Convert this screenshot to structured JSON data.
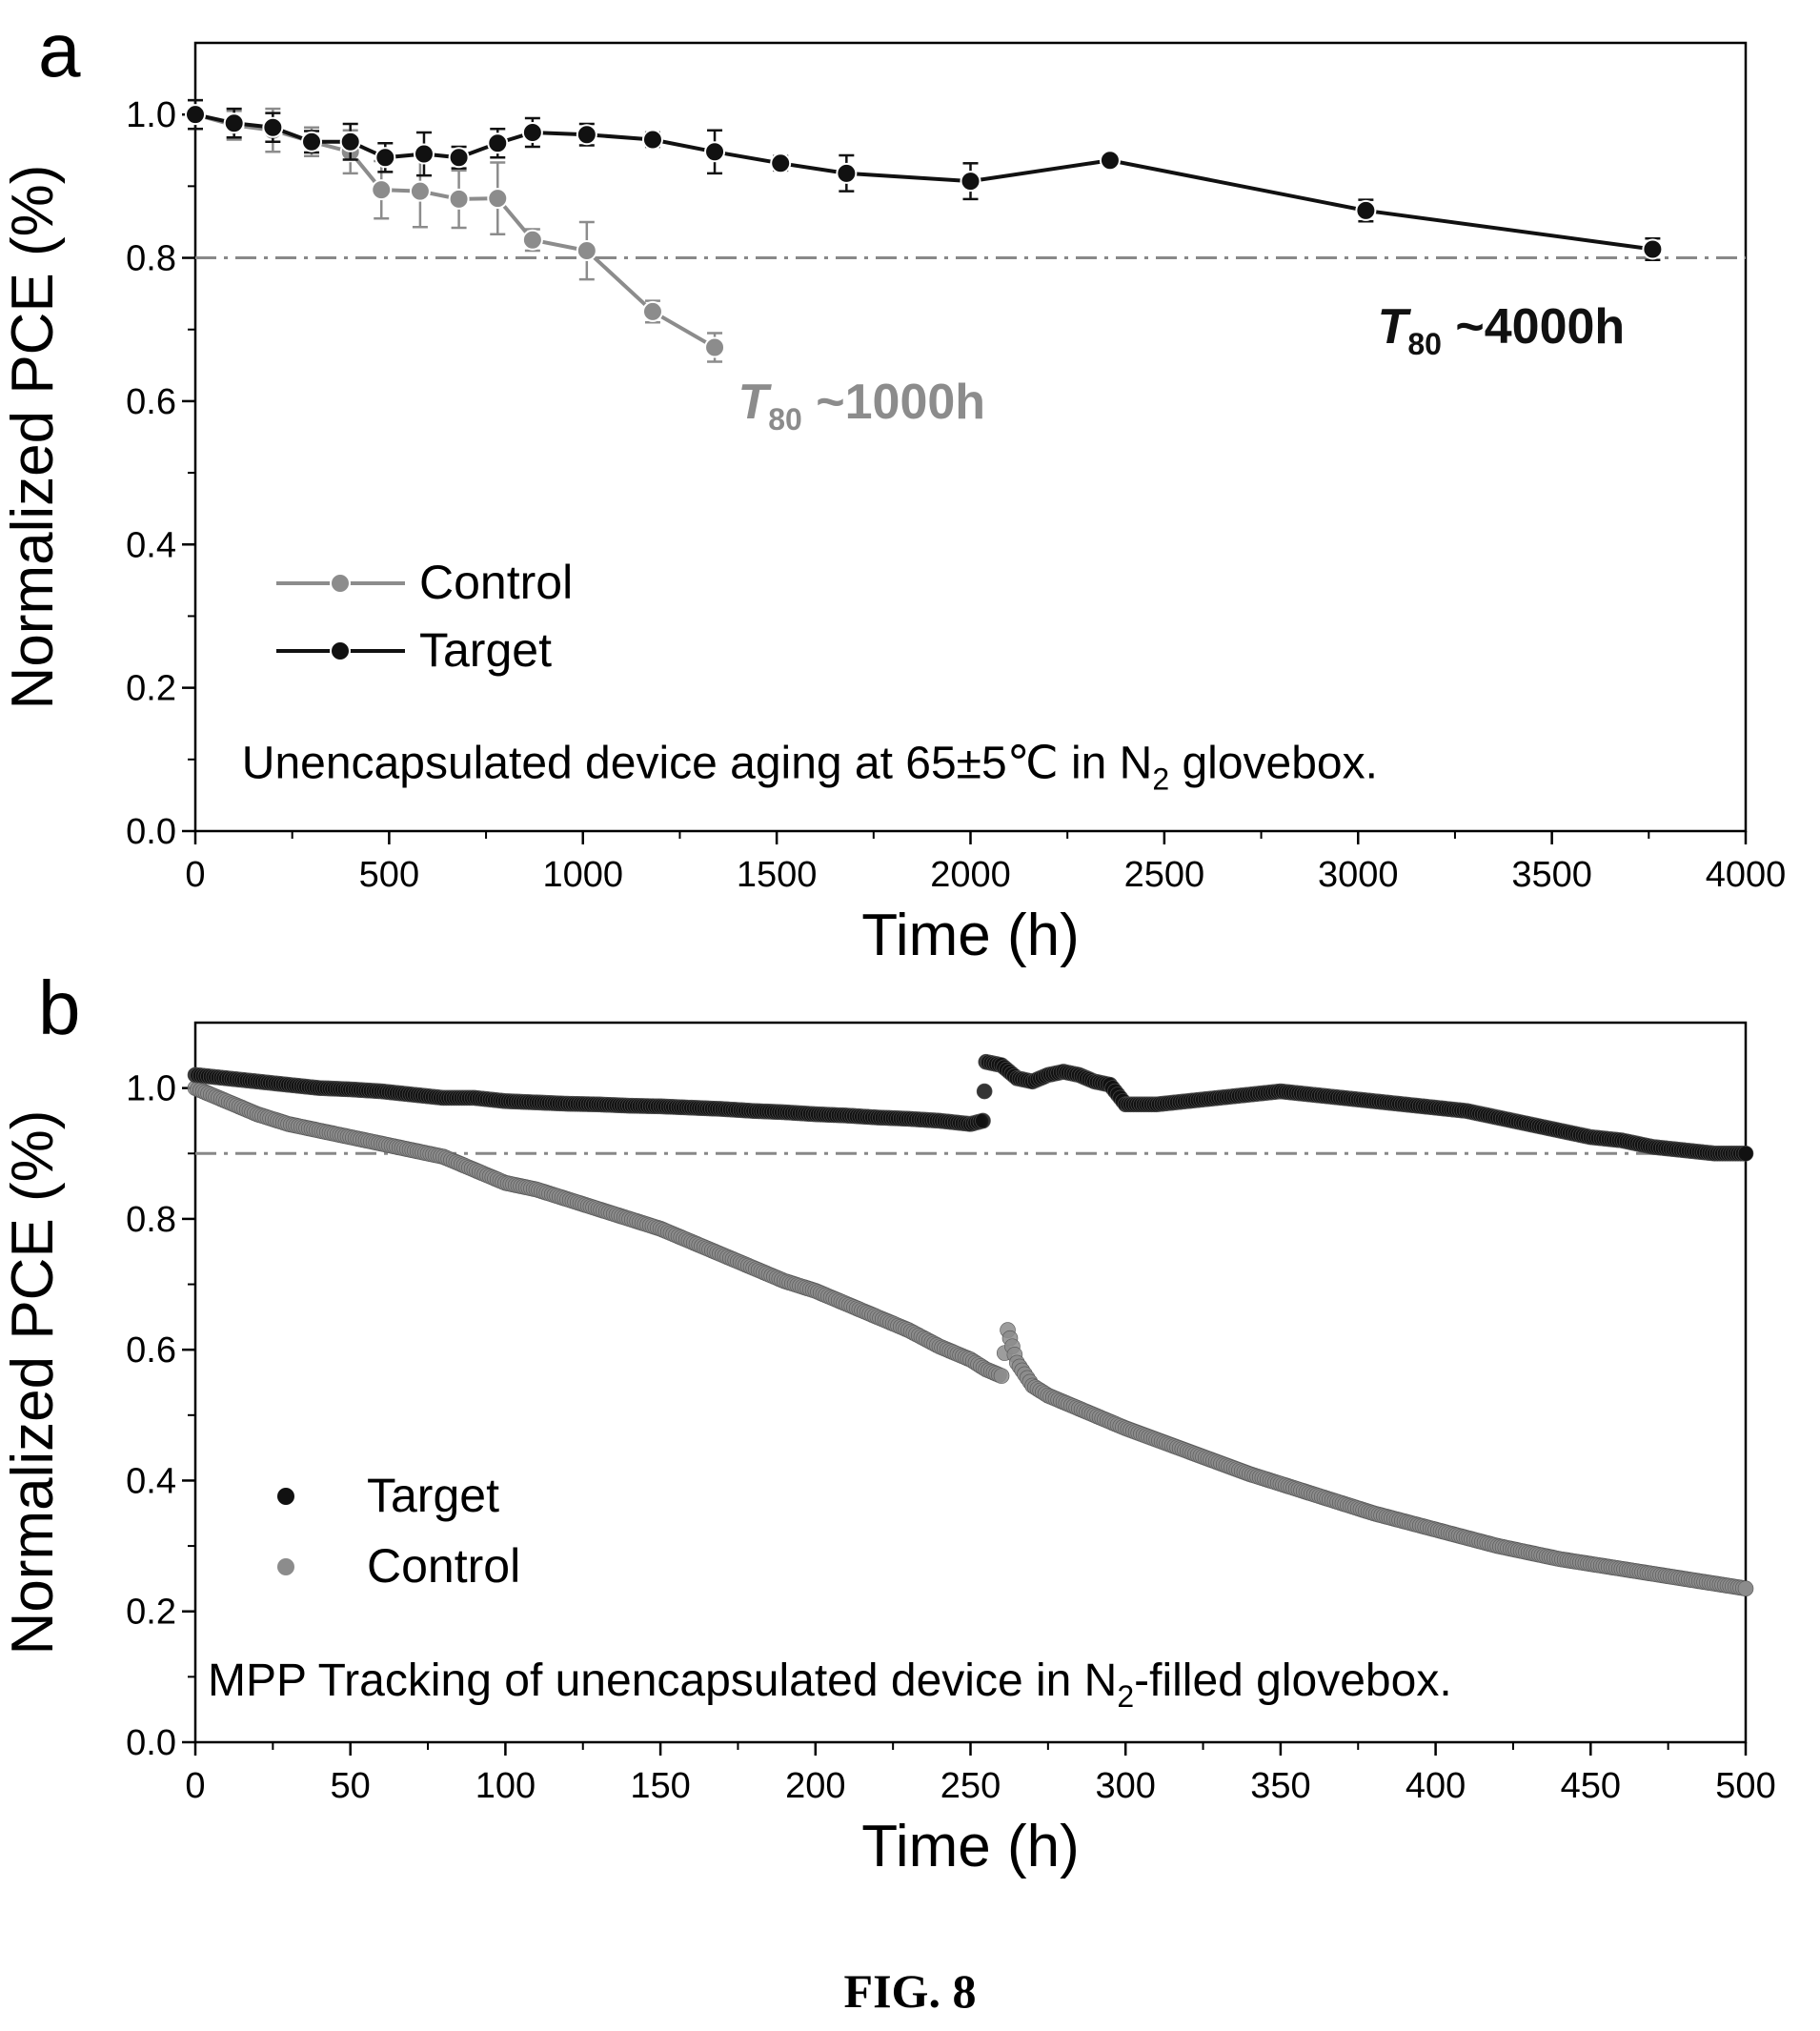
{
  "figure_caption": "FIG. 8",
  "colors": {
    "control": "#8c8c8c",
    "target": "#111111",
    "threshold": "#888888",
    "axis": "#000000"
  },
  "chart_data": [
    {
      "panel_label": "a",
      "type": "line",
      "xlabel": "Time (h)",
      "ylabel": "Normalized PCE (%)",
      "xlim": [
        0,
        4000
      ],
      "ylim": [
        0,
        1.1
      ],
      "xticks": [
        0,
        500,
        1000,
        1500,
        2000,
        2500,
        3000,
        3500,
        4000
      ],
      "yticks": [
        0.0,
        0.2,
        0.4,
        0.6,
        0.8,
        1.0
      ],
      "ytick_labels": [
        "0.0",
        "0.2",
        "0.4",
        "0.6",
        "0.8",
        "1.0"
      ],
      "grid": false,
      "legend": "left",
      "threshold": 0.8,
      "threshold_style": "dash-dot",
      "series": [
        {
          "name": "Control",
          "color_key": "control",
          "x": [
            0,
            100,
            200,
            300,
            400,
            480,
            580,
            680,
            780,
            870,
            1010,
            1180,
            1340
          ],
          "y": [
            1.0,
            0.985,
            0.978,
            0.962,
            0.948,
            0.895,
            0.893,
            0.882,
            0.883,
            0.825,
            0.81,
            0.725,
            0.675
          ],
          "err": [
            0.02,
            0.02,
            0.03,
            0.02,
            0.03,
            0.04,
            0.05,
            0.04,
            0.05,
            0.015,
            0.04,
            0.015,
            0.02
          ]
        },
        {
          "name": "Target",
          "color_key": "target",
          "x": [
            0,
            100,
            200,
            300,
            400,
            490,
            590,
            680,
            780,
            870,
            1010,
            1180,
            1340,
            1510,
            1680,
            2000,
            2360,
            3020,
            3760
          ],
          "y": [
            1.0,
            0.988,
            0.982,
            0.962,
            0.962,
            0.94,
            0.945,
            0.94,
            0.96,
            0.975,
            0.972,
            0.965,
            0.948,
            0.932,
            0.918,
            0.907,
            0.936,
            0.866,
            0.812
          ],
          "err": [
            0.02,
            0.02,
            0.02,
            0.015,
            0.025,
            0.02,
            0.03,
            0.015,
            0.02,
            0.02,
            0.015,
            0.01,
            0.03,
            0.01,
            0.025,
            0.025,
            0.008,
            0.015,
            0.015
          ]
        }
      ],
      "annotations": {
        "control_t80": {
          "italic": "T",
          "sub": "80",
          "rest": " ~1000h",
          "x": 1400,
          "y": 0.6,
          "color_key": "control"
        },
        "target_t80": {
          "italic": "T",
          "sub": "80",
          "rest": " ~4000h",
          "x": 3050,
          "y": 0.705,
          "color_key": "target"
        },
        "condition": {
          "main": "Unencapsulated device aging at 65±5℃ in N",
          "sub": "2",
          "tail": " glovebox.",
          "x": 120,
          "y": 0.095
        }
      }
    },
    {
      "panel_label": "b",
      "type": "scatter",
      "xlabel": "Time (h)",
      "ylabel": "Normalized PCE (%)",
      "xlim": [
        0,
        500
      ],
      "ylim": [
        0,
        1.1
      ],
      "xticks": [
        0,
        50,
        100,
        150,
        200,
        250,
        300,
        350,
        400,
        450,
        500
      ],
      "yticks": [
        0.0,
        0.2,
        0.4,
        0.6,
        0.8,
        1.0
      ],
      "ytick_labels": [
        "0.0",
        "0.2",
        "0.4",
        "0.6",
        "0.8",
        "1.0"
      ],
      "grid": false,
      "legend": "bottom-left",
      "threshold": 0.9,
      "threshold_style": "dash-dot",
      "series": [
        {
          "name": "Target",
          "color_key": "target",
          "x": [
            0,
            10,
            20,
            30,
            40,
            50,
            60,
            70,
            80,
            90,
            100,
            110,
            120,
            130,
            140,
            150,
            160,
            170,
            180,
            190,
            200,
            210,
            220,
            230,
            240,
            250,
            254,
            255,
            260,
            265,
            270,
            275,
            280,
            285,
            290,
            295,
            300,
            310,
            320,
            330,
            340,
            350,
            360,
            370,
            380,
            390,
            400,
            410,
            420,
            430,
            440,
            450,
            460,
            470,
            480,
            490,
            500
          ],
          "y": [
            1.02,
            1.015,
            1.01,
            1.005,
            1.0,
            0.998,
            0.995,
            0.99,
            0.985,
            0.985,
            0.98,
            0.978,
            0.976,
            0.975,
            0.973,
            0.972,
            0.97,
            0.968,
            0.965,
            0.963,
            0.96,
            0.958,
            0.955,
            0.953,
            0.95,
            0.945,
            0.95,
            1.04,
            1.035,
            1.015,
            1.01,
            1.02,
            1.025,
            1.02,
            1.01,
            1.005,
            0.975,
            0.975,
            0.98,
            0.985,
            0.99,
            0.995,
            0.99,
            0.985,
            0.98,
            0.975,
            0.97,
            0.965,
            0.955,
            0.945,
            0.935,
            0.925,
            0.92,
            0.91,
            0.905,
            0.9,
            0.9
          ]
        },
        {
          "name": "Control",
          "color_key": "control",
          "x": [
            0,
            10,
            20,
            30,
            40,
            50,
            60,
            70,
            80,
            90,
            100,
            110,
            120,
            130,
            140,
            150,
            160,
            170,
            180,
            190,
            200,
            210,
            220,
            230,
            240,
            250,
            255,
            260,
            262,
            265,
            270,
            275,
            280,
            290,
            300,
            320,
            340,
            360,
            380,
            400,
            420,
            440,
            460,
            480,
            500
          ],
          "y": [
            1.0,
            0.98,
            0.96,
            0.945,
            0.935,
            0.925,
            0.915,
            0.905,
            0.895,
            0.875,
            0.855,
            0.845,
            0.83,
            0.815,
            0.8,
            0.785,
            0.765,
            0.745,
            0.725,
            0.705,
            0.69,
            0.67,
            0.65,
            0.63,
            0.605,
            0.585,
            0.57,
            0.56,
            0.63,
            0.58,
            0.545,
            0.53,
            0.52,
            0.5,
            0.48,
            0.445,
            0.41,
            0.38,
            0.35,
            0.325,
            0.3,
            0.28,
            0.265,
            0.25,
            0.235
          ]
        }
      ],
      "annotations": {
        "condition": {
          "main": "MPP Tracking of unencapsulated device in N",
          "sub": "2",
          "tail": "-filled glovebox.",
          "x": 4,
          "y": 0.095
        }
      }
    }
  ]
}
